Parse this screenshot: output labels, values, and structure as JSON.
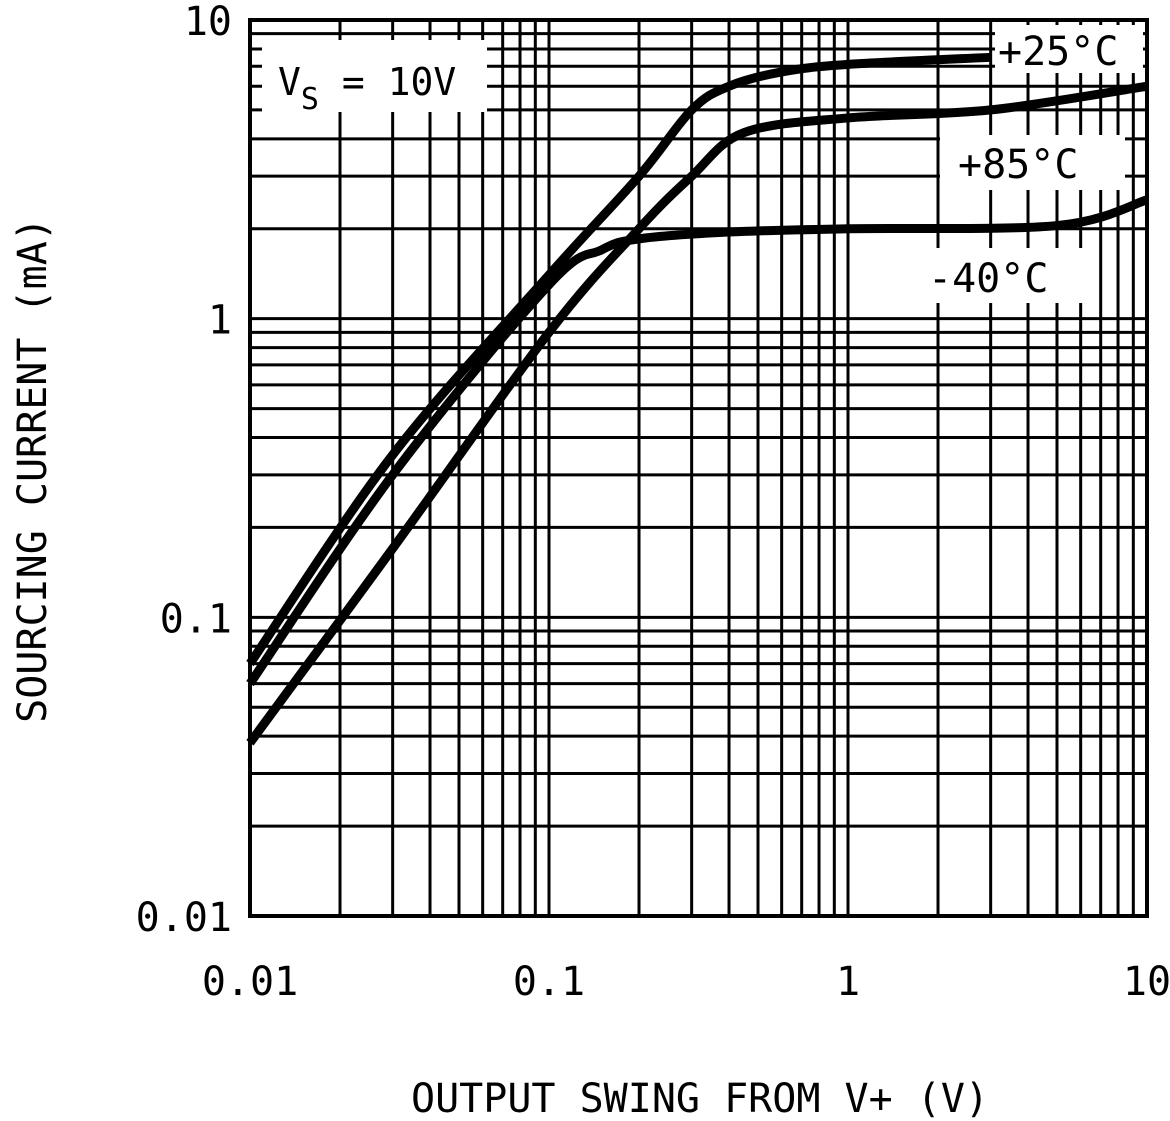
{
  "chart_data": {
    "type": "line",
    "title": "",
    "xlabel": "OUTPUT SWING FROM V+ (V)",
    "ylabel": "SOURCING CURRENT (mA)",
    "xscale": "log",
    "yscale": "log",
    "xlim": [
      0.01,
      10
    ],
    "ylim": [
      0.01,
      10
    ],
    "grid": true,
    "xticks": [
      {
        "v": 0.01,
        "label": "0.01"
      },
      {
        "v": 0.1,
        "label": "0.1"
      },
      {
        "v": 1,
        "label": "1"
      },
      {
        "v": 10,
        "label": "10"
      }
    ],
    "yticks": [
      {
        "v": 0.01,
        "label": "0.01"
      },
      {
        "v": 0.1,
        "label": "0.1"
      },
      {
        "v": 1,
        "label": "1"
      },
      {
        "v": 10,
        "label": "10"
      }
    ],
    "annotation": {
      "main": "V",
      "sub": "S",
      "rest": " = 10V"
    },
    "series": [
      {
        "name": "+25°C",
        "points": [
          [
            0.01,
            0.07
          ],
          [
            0.03,
            0.35
          ],
          [
            0.1,
            1.4
          ],
          [
            0.2,
            3.0
          ],
          [
            0.3,
            5.0
          ],
          [
            0.4,
            6.0
          ],
          [
            0.6,
            6.7
          ],
          [
            1,
            7.1
          ],
          [
            3,
            7.5
          ]
        ]
      },
      {
        "name": "+85°C",
        "points": [
          [
            0.01,
            0.038
          ],
          [
            0.03,
            0.17
          ],
          [
            0.1,
            0.9
          ],
          [
            0.2,
            2.0
          ],
          [
            0.3,
            3.0
          ],
          [
            0.45,
            4.2
          ],
          [
            1,
            4.7
          ],
          [
            3,
            5.0
          ],
          [
            10,
            6.0
          ]
        ]
      },
      {
        "name": "-40°C",
        "points": [
          [
            0.01,
            0.06
          ],
          [
            0.03,
            0.3
          ],
          [
            0.1,
            1.3
          ],
          [
            0.15,
            1.7
          ],
          [
            0.2,
            1.85
          ],
          [
            0.4,
            1.95
          ],
          [
            1,
            2.0
          ],
          [
            5,
            2.05
          ],
          [
            10,
            2.5
          ]
        ]
      }
    ]
  }
}
